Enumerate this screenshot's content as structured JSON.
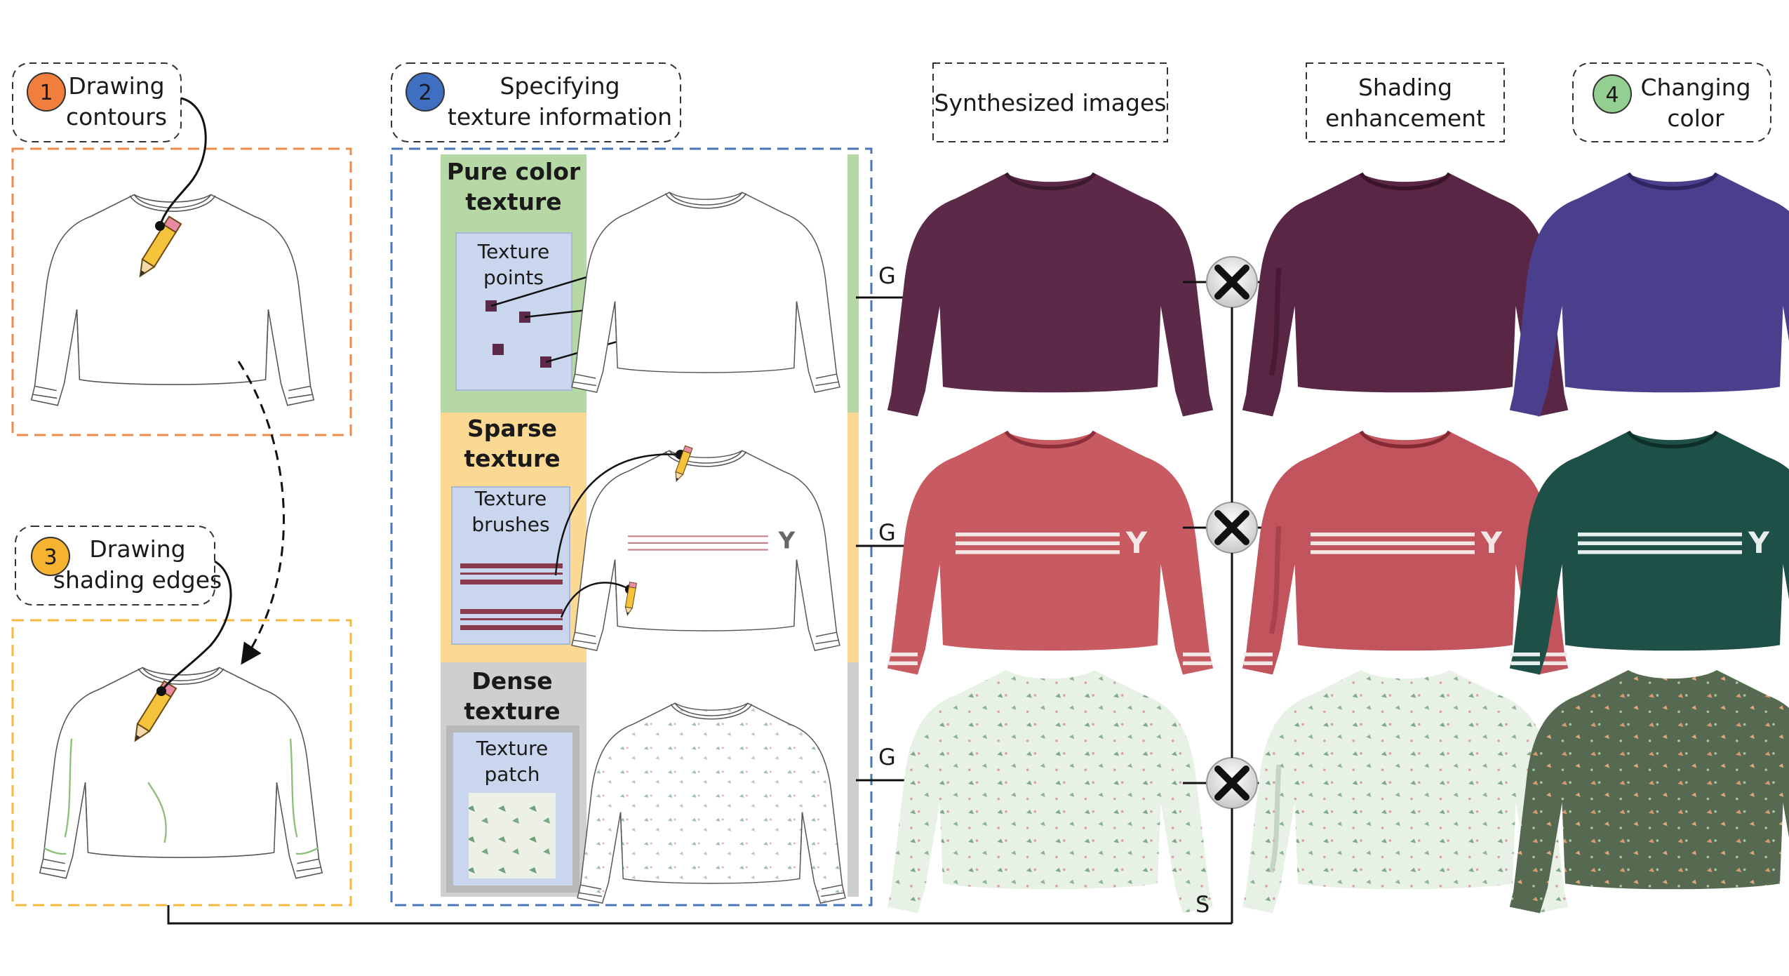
{
  "steps": [
    {
      "number": "1",
      "line1": "Drawing",
      "line2": "contours",
      "color": "#f07f3e"
    },
    {
      "number": "2",
      "line1": "Specifying",
      "line2": "texture information",
      "color": "#3e6fc0"
    },
    {
      "number": "3",
      "line1": "Drawing",
      "line2": "shading edges",
      "color": "#f5b330"
    },
    {
      "number": "4",
      "line1": "Changing",
      "line2": "color",
      "color": "#93cf90"
    }
  ],
  "column_headers": {
    "synthesized": "Synthesized images",
    "shading_line1": "Shading",
    "shading_line2": "enhancement"
  },
  "texture_types": [
    {
      "title_line1": "Pure color",
      "title_line2": "texture",
      "sub_line1": "Texture",
      "sub_line2": "points",
      "bg": "#b5d8a5"
    },
    {
      "title_line1": "Sparse",
      "title_line2": "texture",
      "sub_line1": "Texture",
      "sub_line2": "brushes",
      "bg": "#fbd993"
    },
    {
      "title_line1": "Dense",
      "title_line2": "texture",
      "sub_line1": "Texture",
      "sub_line2": "patch",
      "bg": "#cfcfcf"
    }
  ],
  "operators": {
    "generator": "G",
    "shading": "S"
  },
  "garment_logo": "Y",
  "colors": {
    "orange_frame": "#ee8a4a",
    "blue_frame": "#4a76b8",
    "yellow_frame": "#f5b93e",
    "panel_blue": "#c9d6ee",
    "plum": "#5c2a48",
    "coral": "#c85a62",
    "mint": "#e4efe4",
    "indigo": "#4a3f8c",
    "teal": "#1f5048",
    "olive_green": "#566a52"
  }
}
